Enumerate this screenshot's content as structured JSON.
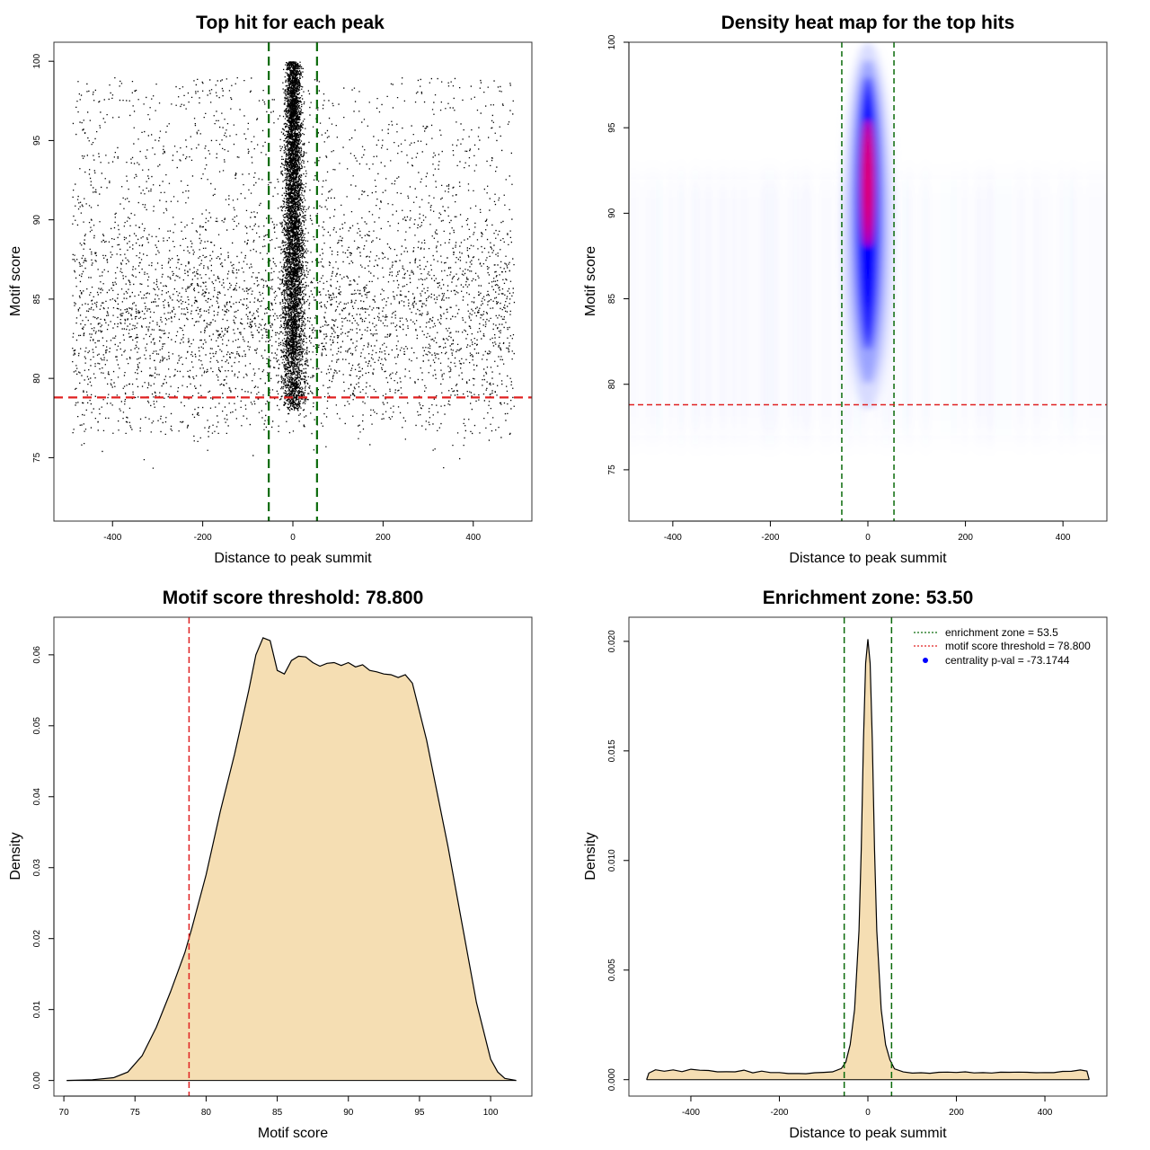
{
  "colors": {
    "zone_line": "#0a6a0a",
    "threshold_line": "#e02020",
    "density_fill": "#f5deb3",
    "heat_low": "#ffffff",
    "heat_mid": "#0000ff",
    "heat_high": "#ff0000",
    "legend_point": "#0000ff"
  },
  "chart_data": [
    {
      "id": "scatter",
      "type": "scatter",
      "title": "Top hit for each peak",
      "xlabel": "Distance to peak summit",
      "ylabel": "Motif score",
      "xlim": [
        -530,
        530
      ],
      "ylim": [
        71,
        101.2
      ],
      "xticks": [
        "-400",
        "-200",
        "0",
        "200",
        "400"
      ],
      "xtick_values": [
        -400,
        -200,
        0,
        200,
        400
      ],
      "yticks": [
        "75",
        "80",
        "85",
        "90",
        "95",
        "100"
      ],
      "ytick_values": [
        75,
        80,
        85,
        90,
        95,
        100
      ],
      "background_points": {
        "x_range": [
          -490,
          490
        ],
        "y_range": [
          73.5,
          99
        ],
        "y_mode": 84,
        "approx_count": 9000
      },
      "central_points": {
        "x_center": 0,
        "x_sd": 14,
        "y_range": [
          78,
          100
        ],
        "approx_count": 6000
      },
      "hlines": [
        {
          "y": 78.8,
          "role": "motif score threshold"
        }
      ],
      "vlines": [
        {
          "x": -53.5,
          "role": "enrichment zone"
        },
        {
          "x": 53.5,
          "role": "enrichment zone"
        }
      ]
    },
    {
      "id": "heatmap",
      "type": "heatmap",
      "title": "Density heat map for the top hits",
      "xlabel": "Distance to peak summit",
      "ylabel": "Motif score",
      "xlim": [
        -490,
        490
      ],
      "ylim": [
        72,
        100
      ],
      "xticks": [
        "-400",
        "-200",
        "0",
        "200",
        "400"
      ],
      "xtick_values": [
        -400,
        -200,
        0,
        200,
        400
      ],
      "yticks": [
        "75",
        "80",
        "85",
        "90",
        "95",
        "100"
      ],
      "ytick_values": [
        75,
        80,
        85,
        90,
        95,
        100
      ],
      "hotspot": {
        "x": 0,
        "y_peak": 92.5,
        "x_sd": 10,
        "y_range": [
          80,
          99
        ]
      },
      "hlines": [
        {
          "y": 78.8,
          "role": "motif score threshold"
        }
      ],
      "vlines": [
        {
          "x": -53.5,
          "role": "enrichment zone"
        },
        {
          "x": 53.5,
          "role": "enrichment zone"
        }
      ]
    },
    {
      "id": "score_density",
      "type": "area",
      "title": "Motif score threshold: 78.800",
      "xlabel": "Motif score",
      "ylabel": "Density",
      "xlim": [
        69.3,
        102.9
      ],
      "ylim": [
        -0.0022,
        0.0653
      ],
      "xticks": [
        "70",
        "75",
        "80",
        "85",
        "90",
        "95",
        "100"
      ],
      "xtick_values": [
        70,
        75,
        80,
        85,
        90,
        95,
        100
      ],
      "yticks": [
        "0.00",
        "0.01",
        "0.02",
        "0.03",
        "0.04",
        "0.05",
        "0.06"
      ],
      "ytick_values": [
        0,
        0.01,
        0.02,
        0.03,
        0.04,
        0.05,
        0.06
      ],
      "x": [
        70.2,
        72,
        73.5,
        74.5,
        75.5,
        76.5,
        77.5,
        78.5,
        79,
        80,
        81,
        82,
        83,
        83.5,
        84,
        84.5,
        85,
        85.5,
        86,
        86.5,
        87,
        87.5,
        88,
        88.5,
        89,
        89.5,
        90,
        90.5,
        91,
        91.5,
        92,
        92.5,
        93,
        93.5,
        94,
        94.5,
        95,
        95.5,
        96,
        97,
        98,
        99,
        100,
        100.5,
        101,
        101.8
      ],
      "y": [
        0.0,
        0.0001,
        0.0004,
        0.0012,
        0.0035,
        0.0075,
        0.0125,
        0.018,
        0.0215,
        0.029,
        0.038,
        0.046,
        0.055,
        0.06,
        0.0624,
        0.062,
        0.0578,
        0.0573,
        0.0592,
        0.0598,
        0.0597,
        0.0589,
        0.0584,
        0.0588,
        0.0589,
        0.0585,
        0.0589,
        0.0583,
        0.0586,
        0.0578,
        0.0576,
        0.0573,
        0.0572,
        0.0568,
        0.0572,
        0.056,
        0.052,
        0.048,
        0.043,
        0.033,
        0.022,
        0.011,
        0.003,
        0.0012,
        0.0003,
        0.0
      ],
      "vlines": [
        {
          "x": 78.8,
          "role": "motif score threshold"
        }
      ]
    },
    {
      "id": "distance_density",
      "type": "area",
      "title": "Enrichment zone: 53.50",
      "xlabel": "Distance to peak summit",
      "ylabel": "Density",
      "xlim": [
        -540,
        540
      ],
      "ylim": [
        -0.00075,
        0.0211
      ],
      "xticks": [
        "-400",
        "-200",
        "0",
        "200",
        "400"
      ],
      "xtick_values": [
        -400,
        -200,
        0,
        200,
        400
      ],
      "yticks": [
        "0.000",
        "0.005",
        "0.010",
        "0.015",
        "0.020"
      ],
      "ytick_values": [
        0,
        0.005,
        0.01,
        0.015,
        0.02
      ],
      "x": [
        -500,
        -495,
        -480,
        -460,
        -440,
        -420,
        -400,
        -380,
        -360,
        -340,
        -320,
        -300,
        -280,
        -260,
        -240,
        -220,
        -200,
        -180,
        -160,
        -140,
        -120,
        -100,
        -80,
        -60,
        -50,
        -40,
        -30,
        -20,
        -15,
        -10,
        -5,
        0,
        5,
        10,
        15,
        20,
        30,
        40,
        50,
        60,
        80,
        100,
        120,
        140,
        160,
        180,
        200,
        220,
        240,
        260,
        280,
        300,
        320,
        340,
        360,
        380,
        400,
        420,
        440,
        460,
        480,
        495,
        500
      ],
      "y": [
        0.0,
        0.0003,
        0.00045,
        0.0004,
        0.00042,
        0.00038,
        0.00045,
        0.0004,
        0.00042,
        0.00038,
        0.0004,
        0.00035,
        0.0004,
        0.00033,
        0.00035,
        0.0003,
        0.00033,
        0.0003,
        0.00032,
        0.0003,
        0.00028,
        0.0003,
        0.00035,
        0.0005,
        0.0008,
        0.0016,
        0.0032,
        0.0068,
        0.0105,
        0.0155,
        0.019,
        0.0201,
        0.019,
        0.0155,
        0.0105,
        0.0068,
        0.0032,
        0.0016,
        0.0009,
        0.0005,
        0.00035,
        0.0003,
        0.00033,
        0.0003,
        0.00032,
        0.00035,
        0.0003,
        0.00033,
        0.0003,
        0.00032,
        0.0003,
        0.00033,
        0.0003,
        0.00032,
        0.0003,
        0.00035,
        0.00033,
        0.00035,
        0.0004,
        0.0004,
        0.00042,
        0.0004,
        0.0
      ],
      "vlines": [
        {
          "x": -53.5,
          "role": "enrichment zone"
        },
        {
          "x": 53.5,
          "role": "enrichment zone"
        }
      ],
      "legend": {
        "position": "top-right",
        "entries": [
          {
            "label": "enrichment zone = 53.5",
            "kind": "line",
            "color": "#0a6a0a"
          },
          {
            "label": "motif score threshold = 78.800",
            "kind": "line",
            "color": "#e02020"
          },
          {
            "label": "centrality p-val = -73.1744",
            "kind": "point",
            "color": "#0000ff"
          }
        ]
      }
    }
  ]
}
